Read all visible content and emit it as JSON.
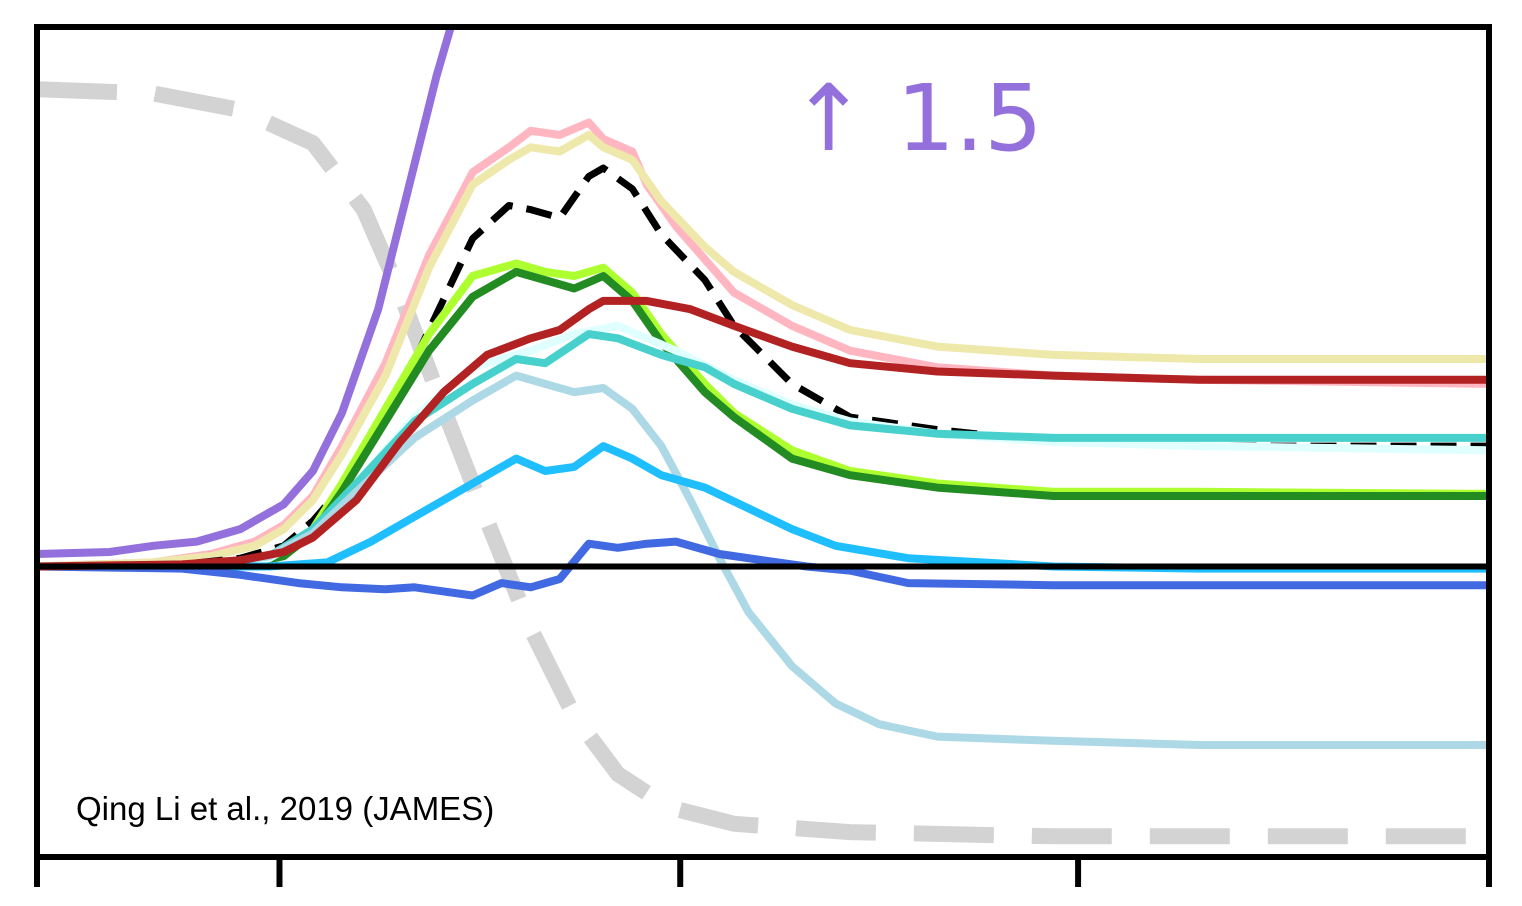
{
  "chart_data": {
    "type": "line",
    "title": "",
    "xlabel": "",
    "ylabel": "",
    "xlim": [
      0,
      100
    ],
    "ylim": [
      -7,
      13
    ],
    "grid": false,
    "legend": "none",
    "xticks": [
      0,
      16.7,
      44.3,
      71.7,
      100
    ],
    "annotation": {
      "text": "↑ 1.5",
      "color": "#9370db"
    },
    "citation": "Qing Li et al., 2019 (JAMES)",
    "zero_line": 0,
    "series": [
      {
        "color": "#d3d3d3",
        "dash": "dashed-thick",
        "points": [
          [
            0,
            11.5
          ],
          [
            8,
            11.4
          ],
          [
            14,
            11.0
          ],
          [
            19,
            10.2
          ],
          [
            22.5,
            8.6
          ],
          [
            25,
            6.6
          ],
          [
            28,
            3.8
          ],
          [
            31,
            1.1
          ],
          [
            34,
            -1.5
          ],
          [
            37,
            -3.6
          ],
          [
            40,
            -5.0
          ],
          [
            43.5,
            -5.8
          ],
          [
            48,
            -6.2
          ],
          [
            56,
            -6.4
          ],
          [
            70,
            -6.5
          ],
          [
            100,
            -6.5
          ]
        ]
      },
      {
        "color": "#9370db",
        "dash": "solid",
        "points": [
          [
            0,
            0.3
          ],
          [
            5,
            0.35
          ],
          [
            8,
            0.5
          ],
          [
            11,
            0.6
          ],
          [
            14,
            0.9
          ],
          [
            17,
            1.5
          ],
          [
            19,
            2.3
          ],
          [
            21,
            3.7
          ],
          [
            23.5,
            6.2
          ],
          [
            25.5,
            9.0
          ],
          [
            27.5,
            11.8
          ],
          [
            28.5,
            13.0
          ]
        ]
      },
      {
        "color": "#ffb6c1",
        "dash": "solid",
        "points": [
          [
            0,
            0
          ],
          [
            8,
            0.1
          ],
          [
            12,
            0.3
          ],
          [
            15,
            0.6
          ],
          [
            17,
            1.0
          ],
          [
            19,
            1.7
          ],
          [
            21,
            2.9
          ],
          [
            24,
            4.9
          ],
          [
            27,
            7.5
          ],
          [
            30,
            9.5
          ],
          [
            32.5,
            10.1
          ],
          [
            34,
            10.5
          ],
          [
            36,
            10.4
          ],
          [
            38,
            10.7
          ],
          [
            39,
            10.3
          ],
          [
            41,
            10.0
          ],
          [
            42,
            9.2
          ],
          [
            44,
            8.2
          ],
          [
            46,
            7.4
          ],
          [
            48,
            6.6
          ],
          [
            52,
            5.8
          ],
          [
            56,
            5.2
          ],
          [
            62,
            4.8
          ],
          [
            70,
            4.6
          ],
          [
            80,
            4.5
          ],
          [
            100,
            4.4
          ]
        ]
      },
      {
        "color": "#eee8aa",
        "dash": "solid",
        "points": [
          [
            0,
            0
          ],
          [
            8,
            0.1
          ],
          [
            12,
            0.25
          ],
          [
            15,
            0.5
          ],
          [
            17,
            0.9
          ],
          [
            19,
            1.6
          ],
          [
            21,
            2.7
          ],
          [
            24,
            4.6
          ],
          [
            27,
            7.2
          ],
          [
            30,
            9.2
          ],
          [
            32.5,
            9.8
          ],
          [
            34,
            10.1
          ],
          [
            36,
            10.0
          ],
          [
            38,
            10.4
          ],
          [
            39,
            10.1
          ],
          [
            41,
            9.8
          ],
          [
            43,
            8.8
          ],
          [
            46,
            7.7
          ],
          [
            48,
            7.1
          ],
          [
            52,
            6.3
          ],
          [
            56,
            5.7
          ],
          [
            62,
            5.3
          ],
          [
            70,
            5.1
          ],
          [
            80,
            5.0
          ],
          [
            100,
            5.0
          ]
        ]
      },
      {
        "color": "#000000",
        "dash": "dashed",
        "points": [
          [
            0,
            0
          ],
          [
            10,
            0.05
          ],
          [
            14,
            0.2
          ],
          [
            17,
            0.5
          ],
          [
            19,
            1.1
          ],
          [
            21,
            1.9
          ],
          [
            24,
            3.5
          ],
          [
            27,
            5.7
          ],
          [
            30,
            7.9
          ],
          [
            32.5,
            8.7
          ],
          [
            34,
            8.6
          ],
          [
            36,
            8.4
          ],
          [
            38,
            9.4
          ],
          [
            39,
            9.6
          ],
          [
            41,
            9.1
          ],
          [
            43,
            8.0
          ],
          [
            46,
            6.9
          ],
          [
            48,
            5.8
          ],
          [
            52,
            4.4
          ],
          [
            56,
            3.6
          ],
          [
            62,
            3.3
          ],
          [
            70,
            3.0
          ],
          [
            80,
            2.9
          ],
          [
            100,
            2.9
          ]
        ]
      },
      {
        "color": "#adff2f",
        "dash": "solid",
        "points": [
          [
            0,
            0
          ],
          [
            12,
            0
          ],
          [
            15,
            0.1
          ],
          [
            17,
            0.25
          ],
          [
            19,
            0.9
          ],
          [
            21,
            2.0
          ],
          [
            24,
            3.8
          ],
          [
            27,
            5.6
          ],
          [
            30,
            7.0
          ],
          [
            33,
            7.3
          ],
          [
            35,
            7.1
          ],
          [
            37,
            7.0
          ],
          [
            39,
            7.2
          ],
          [
            41,
            6.6
          ],
          [
            43,
            5.6
          ],
          [
            46,
            4.4
          ],
          [
            48,
            3.7
          ],
          [
            52,
            2.8
          ],
          [
            56,
            2.3
          ],
          [
            62,
            2.0
          ],
          [
            70,
            1.8
          ],
          [
            80,
            1.8
          ],
          [
            100,
            1.75
          ]
        ]
      },
      {
        "color": "#228b22",
        "dash": "solid",
        "points": [
          [
            0,
            0
          ],
          [
            12,
            0
          ],
          [
            15,
            0.1
          ],
          [
            17,
            0.25
          ],
          [
            19,
            0.8
          ],
          [
            21,
            1.8
          ],
          [
            24,
            3.5
          ],
          [
            27,
            5.2
          ],
          [
            30,
            6.5
          ],
          [
            33,
            7.1
          ],
          [
            35,
            6.9
          ],
          [
            37,
            6.7
          ],
          [
            39,
            7.0
          ],
          [
            41,
            6.4
          ],
          [
            43,
            5.4
          ],
          [
            46,
            4.2
          ],
          [
            48,
            3.6
          ],
          [
            52,
            2.6
          ],
          [
            56,
            2.2
          ],
          [
            62,
            1.9
          ],
          [
            70,
            1.7
          ],
          [
            80,
            1.7
          ],
          [
            100,
            1.7
          ]
        ]
      },
      {
        "color": "#e0ffff",
        "dash": "solid",
        "points": [
          [
            0,
            0
          ],
          [
            12,
            0.05
          ],
          [
            16,
            0.2
          ],
          [
            19,
            0.8
          ],
          [
            22,
            2.0
          ],
          [
            26,
            3.6
          ],
          [
            30,
            4.8
          ],
          [
            34,
            5.2
          ],
          [
            37,
            5.6
          ],
          [
            40,
            5.8
          ],
          [
            44,
            5.2
          ],
          [
            48,
            4.5
          ],
          [
            52,
            3.9
          ],
          [
            56,
            3.5
          ],
          [
            62,
            3.2
          ],
          [
            70,
            3.0
          ],
          [
            80,
            2.9
          ],
          [
            100,
            2.8
          ]
        ]
      },
      {
        "color": "#48d1cc",
        "dash": "solid",
        "points": [
          [
            0,
            0
          ],
          [
            12,
            0.05
          ],
          [
            16,
            0.25
          ],
          [
            19,
            0.9
          ],
          [
            22,
            2.0
          ],
          [
            26,
            3.5
          ],
          [
            30,
            4.4
          ],
          [
            33,
            5.0
          ],
          [
            35,
            4.9
          ],
          [
            38,
            5.6
          ],
          [
            40,
            5.5
          ],
          [
            43,
            5.1
          ],
          [
            46,
            4.8
          ],
          [
            48,
            4.4
          ],
          [
            52,
            3.8
          ],
          [
            56,
            3.4
          ],
          [
            62,
            3.2
          ],
          [
            70,
            3.1
          ],
          [
            80,
            3.1
          ],
          [
            100,
            3.1
          ]
        ]
      },
      {
        "color": "#add8e6",
        "dash": "solid",
        "points": [
          [
            0,
            0
          ],
          [
            12,
            0.05
          ],
          [
            16,
            0.25
          ],
          [
            19,
            0.8
          ],
          [
            22,
            1.8
          ],
          [
            26,
            3.1
          ],
          [
            30,
            4.0
          ],
          [
            33,
            4.6
          ],
          [
            35,
            4.4
          ],
          [
            37,
            4.2
          ],
          [
            39,
            4.3
          ],
          [
            41,
            3.8
          ],
          [
            43,
            2.9
          ],
          [
            45,
            1.6
          ],
          [
            47,
            0.2
          ],
          [
            49,
            -1.1
          ],
          [
            52,
            -2.4
          ],
          [
            55,
            -3.3
          ],
          [
            58,
            -3.8
          ],
          [
            62,
            -4.1
          ],
          [
            70,
            -4.2
          ],
          [
            80,
            -4.3
          ],
          [
            100,
            -4.3
          ]
        ]
      },
      {
        "color": "#1fbfff",
        "dash": "solid",
        "points": [
          [
            0,
            0
          ],
          [
            16,
            0
          ],
          [
            20,
            0.1
          ],
          [
            23,
            0.6
          ],
          [
            26,
            1.2
          ],
          [
            29,
            1.8
          ],
          [
            31,
            2.2
          ],
          [
            33,
            2.6
          ],
          [
            35,
            2.3
          ],
          [
            37,
            2.4
          ],
          [
            39,
            2.9
          ],
          [
            41,
            2.6
          ],
          [
            43,
            2.2
          ],
          [
            46,
            1.9
          ],
          [
            49,
            1.4
          ],
          [
            52,
            0.9
          ],
          [
            55,
            0.5
          ],
          [
            60,
            0.2
          ],
          [
            70,
            0
          ],
          [
            80,
            -0.05
          ],
          [
            100,
            -0.05
          ]
        ]
      },
      {
        "color": "#4169e1",
        "dash": "solid",
        "points": [
          [
            0,
            0
          ],
          [
            10,
            -0.05
          ],
          [
            14,
            -0.2
          ],
          [
            18,
            -0.4
          ],
          [
            21,
            -0.5
          ],
          [
            24,
            -0.55
          ],
          [
            26,
            -0.5
          ],
          [
            28,
            -0.6
          ],
          [
            30,
            -0.7
          ],
          [
            32,
            -0.4
          ],
          [
            34,
            -0.5
          ],
          [
            36,
            -0.3
          ],
          [
            38,
            0.55
          ],
          [
            40,
            0.45
          ],
          [
            42,
            0.55
          ],
          [
            44,
            0.6
          ],
          [
            47,
            0.3
          ],
          [
            50,
            0.15
          ],
          [
            53,
            0
          ],
          [
            56,
            -0.1
          ],
          [
            60,
            -0.4
          ],
          [
            70,
            -0.45
          ],
          [
            80,
            -0.45
          ],
          [
            100,
            -0.45
          ]
        ]
      },
      {
        "color": "#b22222",
        "dash": "solid",
        "points": [
          [
            0,
            0
          ],
          [
            10,
            0.05
          ],
          [
            14,
            0.15
          ],
          [
            17,
            0.35
          ],
          [
            19,
            0.7
          ],
          [
            22,
            1.6
          ],
          [
            25,
            3.0
          ],
          [
            28,
            4.2
          ],
          [
            31,
            5.1
          ],
          [
            34,
            5.5
          ],
          [
            36,
            5.7
          ],
          [
            38,
            6.2
          ],
          [
            39,
            6.4
          ],
          [
            42,
            6.4
          ],
          [
            45,
            6.2
          ],
          [
            48,
            5.8
          ],
          [
            52,
            5.3
          ],
          [
            56,
            4.9
          ],
          [
            62,
            4.7
          ],
          [
            70,
            4.6
          ],
          [
            80,
            4.5
          ],
          [
            100,
            4.5
          ]
        ]
      }
    ]
  }
}
